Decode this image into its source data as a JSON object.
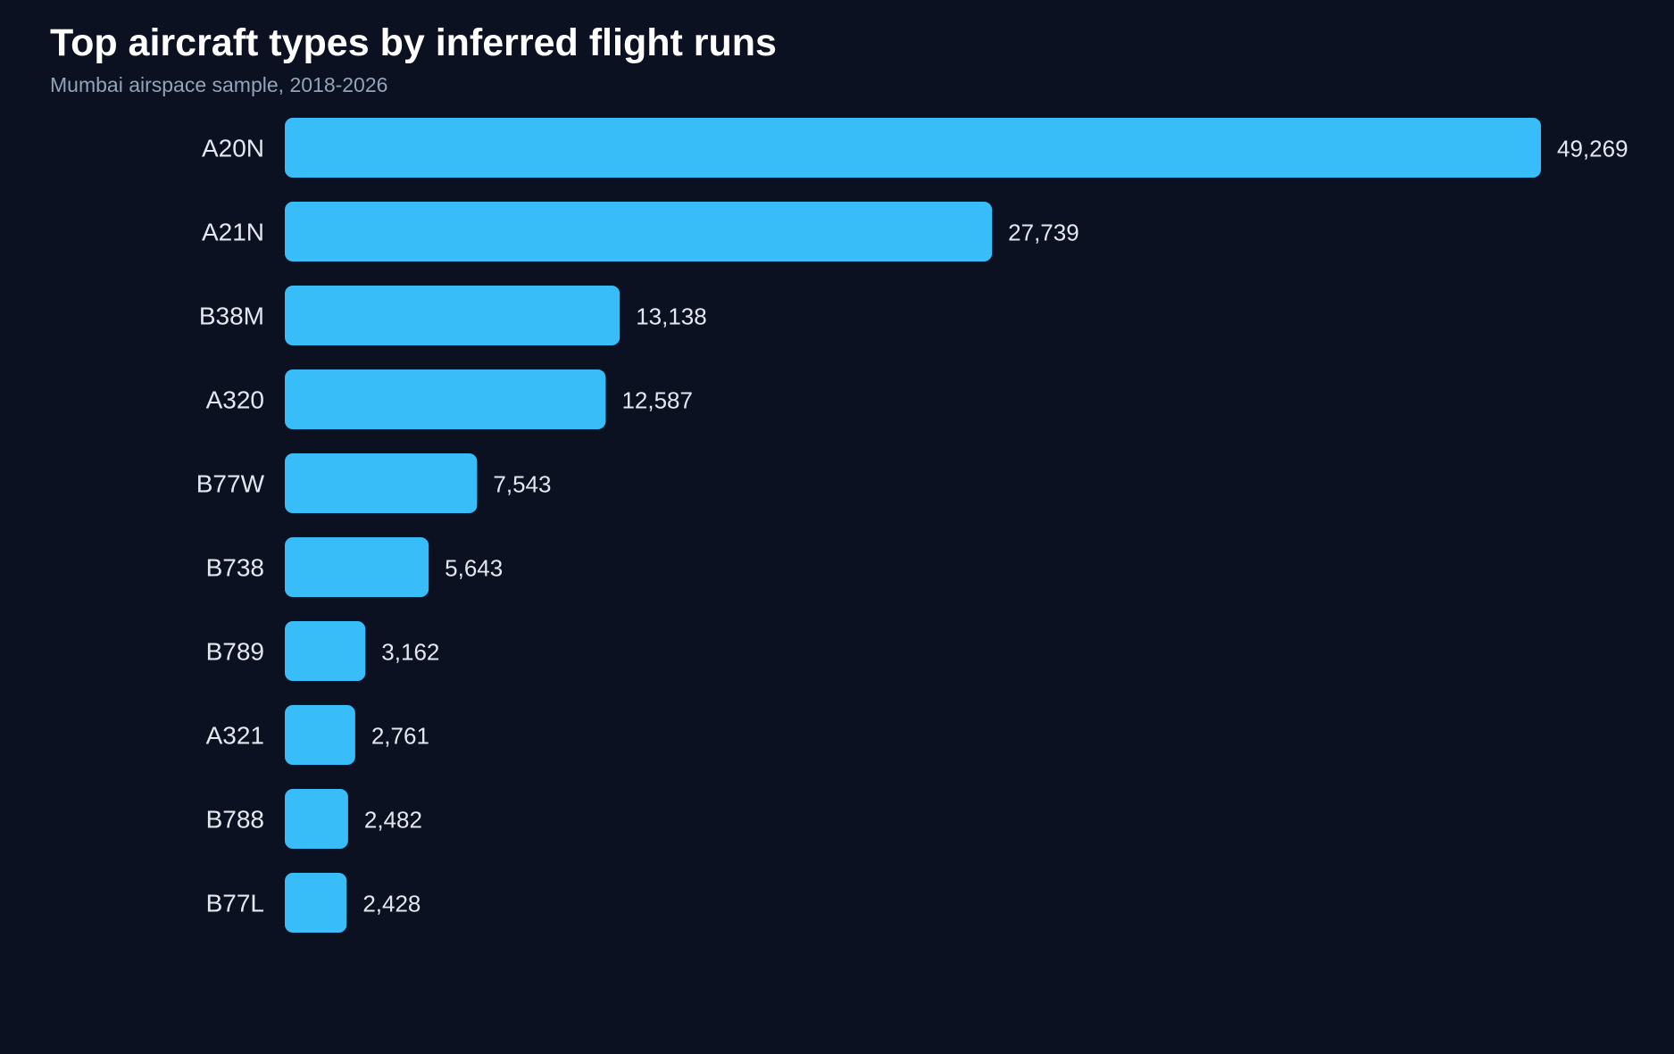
{
  "chart_data": {
    "type": "bar",
    "orientation": "horizontal",
    "title": "Top aircraft types by inferred flight runs",
    "subtitle": "Mumbai airspace sample, 2018-2026",
    "categories": [
      "A20N",
      "A21N",
      "B38M",
      "A320",
      "B77W",
      "B738",
      "B789",
      "A321",
      "B788",
      "B77L"
    ],
    "values": [
      49269,
      27739,
      13138,
      12587,
      7543,
      5643,
      3162,
      2761,
      2482,
      2428
    ],
    "value_labels": [
      "49,269",
      "27,739",
      "13,138",
      "12,587",
      "7,543",
      "5,643",
      "3,162",
      "2,761",
      "2,482",
      "2,428"
    ],
    "xlabel": "",
    "ylabel": "",
    "grid": false,
    "legend": "none",
    "colors": {
      "bar": "#38bdf8",
      "background": "#0b1120",
      "title": "#ffffff",
      "subtitle": "#94a3b8",
      "label": "#e2e8f0"
    }
  }
}
